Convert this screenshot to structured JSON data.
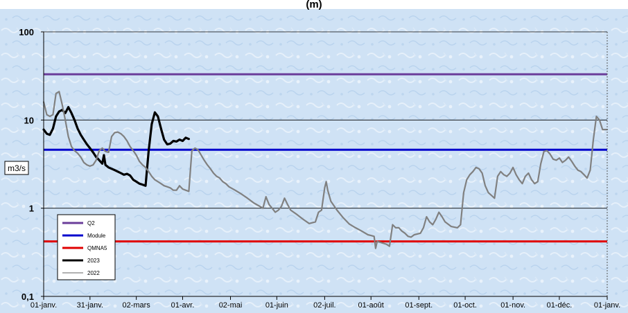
{
  "chart_data": {
    "type": "line",
    "title": "(m)",
    "ylabel": "m3/s",
    "xlabel": "",
    "y_scale": "log",
    "ylim": [
      0.1,
      100
    ],
    "y_ticks": [
      {
        "value": 100,
        "label": "100"
      },
      {
        "value": 10,
        "label": "10"
      },
      {
        "value": 1,
        "label": "1"
      },
      {
        "value": 0.1,
        "label": "0,1"
      }
    ],
    "x_domain": [
      0,
      365
    ],
    "x_ticks": [
      {
        "day": 0,
        "label": "01-janv."
      },
      {
        "day": 30,
        "label": "31-janv."
      },
      {
        "day": 60,
        "label": "02-mars"
      },
      {
        "day": 90,
        "label": "01-avr."
      },
      {
        "day": 121,
        "label": "02-mai"
      },
      {
        "day": 151,
        "label": "01-juin"
      },
      {
        "day": 182,
        "label": "02-juil."
      },
      {
        "day": 212,
        "label": "01-août"
      },
      {
        "day": 243,
        "label": "01-sept."
      },
      {
        "day": 273,
        "label": "01-oct."
      },
      {
        "day": 304,
        "label": "01-nov."
      },
      {
        "day": 334,
        "label": "01-déc."
      },
      {
        "day": 365,
        "label": "01-janv."
      }
    ],
    "grid": "horizontal",
    "legend_position": "bottom-left",
    "series": [
      {
        "name": "Q2",
        "color": "#6a3d9a",
        "kind": "constant",
        "value": 33
      },
      {
        "name": "Module",
        "color": "#0000cc",
        "kind": "constant",
        "value": 4.6
      },
      {
        "name": "QMNA5",
        "color": "#e00000",
        "kind": "constant",
        "value": 0.42
      },
      {
        "name": "2023",
        "color": "#000000",
        "kind": "line",
        "points": [
          [
            0,
            7.8
          ],
          [
            2,
            7
          ],
          [
            4,
            6.8
          ],
          [
            6,
            8
          ],
          [
            8,
            11
          ],
          [
            10,
            12.5
          ],
          [
            12,
            13
          ],
          [
            14,
            12
          ],
          [
            16,
            14
          ],
          [
            18,
            12
          ],
          [
            20,
            10
          ],
          [
            22,
            8
          ],
          [
            24,
            6.8
          ],
          [
            26,
            6
          ],
          [
            28,
            5.3
          ],
          [
            30,
            4.8
          ],
          [
            32,
            4.3
          ],
          [
            34,
            3.8
          ],
          [
            36,
            3.5
          ],
          [
            38,
            3.2
          ],
          [
            39,
            4
          ],
          [
            40,
            3.1
          ],
          [
            42,
            2.9
          ],
          [
            44,
            2.8
          ],
          [
            46,
            2.7
          ],
          [
            48,
            2.6
          ],
          [
            50,
            2.5
          ],
          [
            52,
            2.4
          ],
          [
            54,
            2.45
          ],
          [
            56,
            2.35
          ],
          [
            58,
            2.1
          ],
          [
            60,
            2
          ],
          [
            62,
            1.9
          ],
          [
            64,
            1.85
          ],
          [
            66,
            1.8
          ],
          [
            68,
            4.5
          ],
          [
            70,
            9
          ],
          [
            72,
            12.2
          ],
          [
            74,
            11
          ],
          [
            76,
            8
          ],
          [
            78,
            6
          ],
          [
            80,
            5.3
          ],
          [
            82,
            5.4
          ],
          [
            84,
            5.8
          ],
          [
            86,
            5.7
          ],
          [
            88,
            6
          ],
          [
            90,
            5.8
          ],
          [
            92,
            6.3
          ],
          [
            94,
            6.1
          ]
        ]
      },
      {
        "name": "2022",
        "color": "#808080",
        "kind": "line",
        "points": [
          [
            0,
            16
          ],
          [
            2,
            11.5
          ],
          [
            4,
            11
          ],
          [
            6,
            11.5
          ],
          [
            8,
            20
          ],
          [
            10,
            21
          ],
          [
            12,
            15
          ],
          [
            14,
            10
          ],
          [
            16,
            6.5
          ],
          [
            18,
            5
          ],
          [
            20,
            4.5
          ],
          [
            22,
            4.2
          ],
          [
            24,
            3.8
          ],
          [
            26,
            3.3
          ],
          [
            28,
            3.1
          ],
          [
            30,
            3
          ],
          [
            32,
            3.1
          ],
          [
            34,
            3.5
          ],
          [
            36,
            4.5
          ],
          [
            38,
            4.8
          ],
          [
            40,
            4.4
          ],
          [
            42,
            4.3
          ],
          [
            44,
            6.5
          ],
          [
            46,
            7.2
          ],
          [
            48,
            7.3
          ],
          [
            50,
            7
          ],
          [
            52,
            6.5
          ],
          [
            54,
            5.8
          ],
          [
            56,
            5
          ],
          [
            58,
            4.5
          ],
          [
            60,
            4
          ],
          [
            62,
            3.4
          ],
          [
            64,
            3.1
          ],
          [
            66,
            2.9
          ],
          [
            68,
            2.6
          ],
          [
            70,
            2.3
          ],
          [
            72,
            2.1
          ],
          [
            74,
            2
          ],
          [
            76,
            1.9
          ],
          [
            78,
            1.8
          ],
          [
            80,
            1.75
          ],
          [
            82,
            1.7
          ],
          [
            84,
            1.6
          ],
          [
            86,
            1.6
          ],
          [
            88,
            1.8
          ],
          [
            90,
            1.65
          ],
          [
            92,
            1.6
          ],
          [
            94,
            1.55
          ],
          [
            96,
            4.5
          ],
          [
            98,
            4.8
          ],
          [
            100,
            4.6
          ],
          [
            102,
            4
          ],
          [
            104,
            3.5
          ],
          [
            106,
            3.1
          ],
          [
            108,
            2.8
          ],
          [
            110,
            2.5
          ],
          [
            112,
            2.3
          ],
          [
            114,
            2.2
          ],
          [
            116,
            2
          ],
          [
            118,
            1.9
          ],
          [
            120,
            1.75
          ],
          [
            124,
            1.6
          ],
          [
            128,
            1.45
          ],
          [
            132,
            1.3
          ],
          [
            136,
            1.15
          ],
          [
            140,
            1.05
          ],
          [
            142,
            1
          ],
          [
            144,
            1.35
          ],
          [
            146,
            1.1
          ],
          [
            148,
            1
          ],
          [
            150,
            0.9
          ],
          [
            152,
            0.95
          ],
          [
            154,
            1.05
          ],
          [
            156,
            1.3
          ],
          [
            158,
            1.1
          ],
          [
            160,
            0.95
          ],
          [
            164,
            0.85
          ],
          [
            168,
            0.75
          ],
          [
            172,
            0.67
          ],
          [
            176,
            0.7
          ],
          [
            178,
            0.9
          ],
          [
            180,
            0.95
          ],
          [
            182,
            1.7
          ],
          [
            183,
            2
          ],
          [
            184,
            1.6
          ],
          [
            186,
            1.2
          ],
          [
            190,
            0.95
          ],
          [
            194,
            0.78
          ],
          [
            198,
            0.66
          ],
          [
            202,
            0.6
          ],
          [
            206,
            0.55
          ],
          [
            210,
            0.5
          ],
          [
            212,
            0.49
          ],
          [
            214,
            0.48
          ],
          [
            215,
            0.35
          ],
          [
            216,
            0.42
          ],
          [
            218,
            0.41
          ],
          [
            222,
            0.39
          ],
          [
            224,
            0.37
          ],
          [
            226,
            0.65
          ],
          [
            228,
            0.6
          ],
          [
            230,
            0.6
          ],
          [
            232,
            0.55
          ],
          [
            234,
            0.52
          ],
          [
            236,
            0.48
          ],
          [
            238,
            0.47
          ],
          [
            240,
            0.5
          ],
          [
            244,
            0.52
          ],
          [
            246,
            0.6
          ],
          [
            248,
            0.8
          ],
          [
            250,
            0.7
          ],
          [
            252,
            0.65
          ],
          [
            254,
            0.75
          ],
          [
            256,
            0.9
          ],
          [
            258,
            0.8
          ],
          [
            260,
            0.7
          ],
          [
            264,
            0.62
          ],
          [
            268,
            0.6
          ],
          [
            270,
            0.65
          ],
          [
            272,
            1.5
          ],
          [
            274,
            2.1
          ],
          [
            276,
            2.4
          ],
          [
            278,
            2.6
          ],
          [
            280,
            2.9
          ],
          [
            282,
            2.8
          ],
          [
            284,
            2.5
          ],
          [
            286,
            1.8
          ],
          [
            288,
            1.5
          ],
          [
            290,
            1.4
          ],
          [
            292,
            1.3
          ],
          [
            294,
            2.3
          ],
          [
            296,
            2.6
          ],
          [
            298,
            2.4
          ],
          [
            300,
            2.3
          ],
          [
            302,
            2.5
          ],
          [
            304,
            2.9
          ],
          [
            306,
            2.4
          ],
          [
            308,
            2.1
          ],
          [
            310,
            1.9
          ],
          [
            312,
            2.3
          ],
          [
            314,
            2.5
          ],
          [
            316,
            2.1
          ],
          [
            318,
            1.9
          ],
          [
            320,
            2
          ],
          [
            322,
            3.2
          ],
          [
            324,
            4.4
          ],
          [
            326,
            4.5
          ],
          [
            328,
            4.1
          ],
          [
            330,
            3.6
          ],
          [
            332,
            3.5
          ],
          [
            334,
            3.7
          ],
          [
            336,
            3.3
          ],
          [
            338,
            3.5
          ],
          [
            340,
            3.8
          ],
          [
            342,
            3.4
          ],
          [
            344,
            3
          ],
          [
            346,
            2.7
          ],
          [
            348,
            2.6
          ],
          [
            350,
            2.4
          ],
          [
            352,
            2.2
          ],
          [
            354,
            2.7
          ],
          [
            356,
            6
          ],
          [
            358,
            11
          ],
          [
            360,
            10
          ],
          [
            362,
            7.8
          ],
          [
            365,
            7.8
          ]
        ]
      }
    ]
  }
}
